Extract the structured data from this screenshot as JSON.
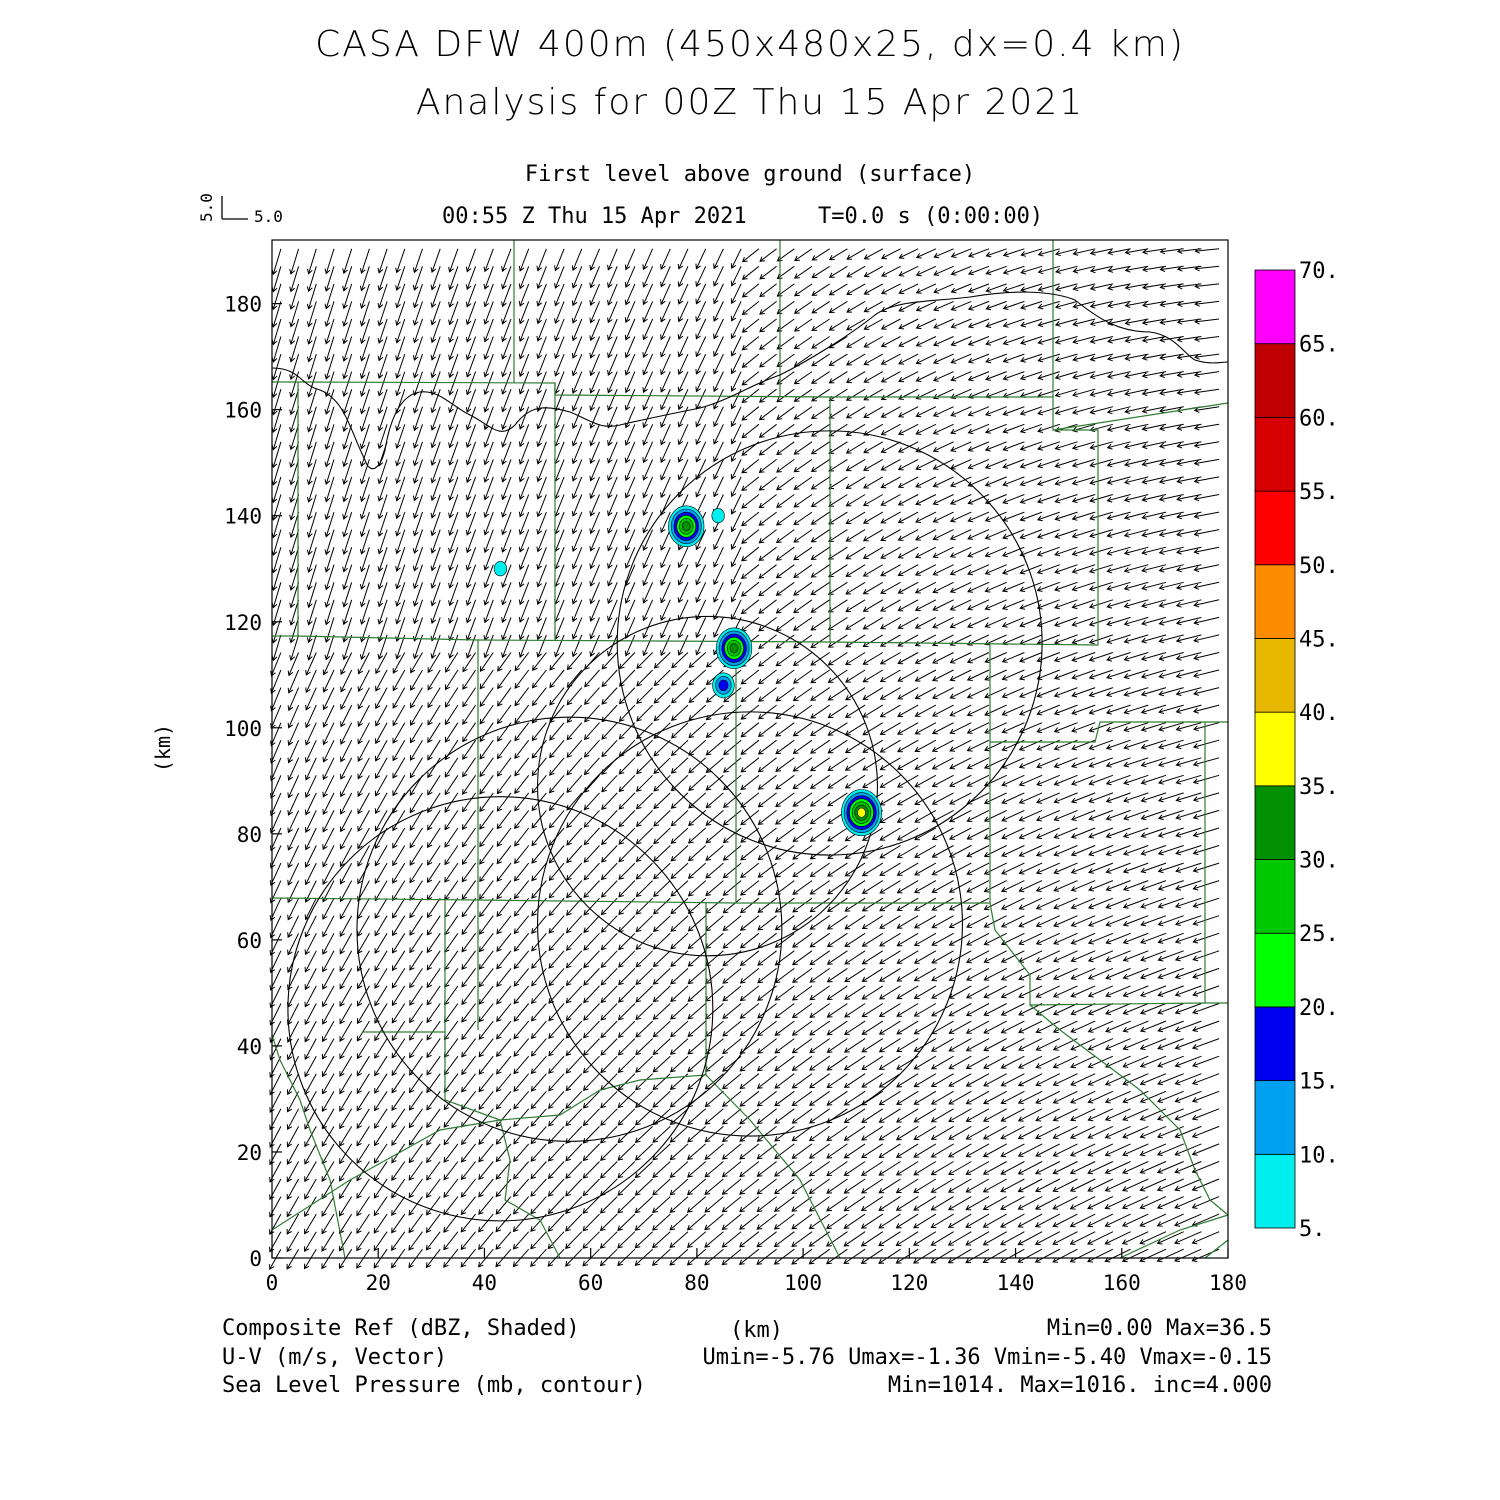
{
  "header": {
    "title_line1": "CASA DFW 400m (450x480x25, dx=0.4 km)",
    "title_line2": "Analysis for 00Z Thu 15 Apr 2021",
    "level": "First level above ground (surface)",
    "valid_time": "00:55 Z Thu 15 Apr 2021",
    "model_time": "T=0.0 s (0:00:00)"
  },
  "vector_key": {
    "u_label": "5.0",
    "v_label": "5.0"
  },
  "axes": {
    "xlabel": "(km)",
    "ylabel": "(km)",
    "xlim": [
      0,
      180
    ],
    "ylim": [
      0,
      192
    ],
    "xticks": [
      "0",
      "20",
      "40",
      "60",
      "80",
      "100",
      "120",
      "140",
      "160",
      "180"
    ],
    "yticks": [
      "0",
      "20",
      "40",
      "60",
      "80",
      "100",
      "120",
      "140",
      "160",
      "180"
    ]
  },
  "colorbar": {
    "labels": [
      "5.",
      "10.",
      "15.",
      "20.",
      "25.",
      "30.",
      "35.",
      "40.",
      "45.",
      "50.",
      "55.",
      "60.",
      "65.",
      "70."
    ],
    "colors": [
      "#00eeee",
      "#00a0f0",
      "#0000f0",
      "#00ff00",
      "#00c800",
      "#009000",
      "#ffff00",
      "#e6b800",
      "#ff8c00",
      "#ff0000",
      "#d70000",
      "#c00000",
      "#ff00ff"
    ]
  },
  "footer": {
    "field1": "Composite Ref (dBZ, Shaded)",
    "field1_stats": "Min=0.00 Max=36.5",
    "field2": "U-V (m/s, Vector)",
    "field2_stats": "Umin=-5.76 Umax=-1.36 Vmin=-5.40 Vmax=-0.15",
    "field3": "Sea Level Pressure (mb, contour)",
    "field3_stats": "Min=1014. Max=1016. inc=4.000",
    "xunit": "(km)"
  },
  "chart_data": {
    "type": "map",
    "fields": [
      "Composite Ref (dBZ)",
      "U-V wind vectors (m/s)",
      "Sea Level Pressure (mb)"
    ],
    "radar_rings_km": [
      {
        "cx": 105,
        "cy": 116,
        "r": 40
      },
      {
        "cx": 82,
        "cy": 89,
        "r": 32
      },
      {
        "cx": 90,
        "cy": 63,
        "r": 40
      },
      {
        "cx": 43,
        "cy": 47,
        "r": 40
      },
      {
        "cx": 56,
        "cy": 62,
        "r": 40
      }
    ],
    "echoes_km": [
      {
        "x": 78,
        "y": 138,
        "dbz": 30
      },
      {
        "x": 84,
        "y": 140,
        "dbz": 8
      },
      {
        "x": 87,
        "y": 115,
        "dbz": 30
      },
      {
        "x": 85,
        "y": 108,
        "dbz": 15
      },
      {
        "x": 111,
        "y": 84,
        "dbz": 36.5
      },
      {
        "x": 43,
        "y": 130,
        "dbz": 8
      }
    ]
  }
}
